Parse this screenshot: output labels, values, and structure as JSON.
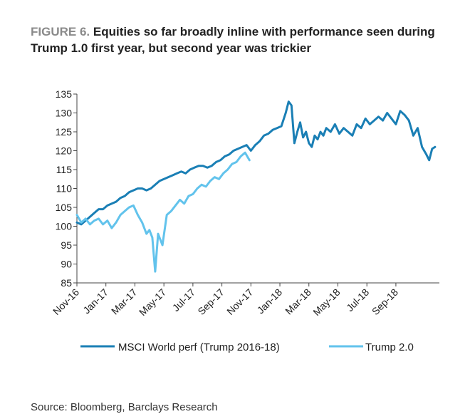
{
  "figure": {
    "label": "FIGURE 6.",
    "title": "Equities so far broadly inline with performance seen during Trump 1.0 first year, but second year was trickier",
    "source": "Source: Bloomberg, Barclays Research"
  },
  "colors": {
    "msci": "#1a7fb5",
    "trump2": "#62c3ec",
    "axis": "#444444"
  },
  "chart_data": {
    "type": "line",
    "title": "Equities so far broadly inline with performance seen during Trump 1.0 first year, but second year was trickier",
    "xlabel": "",
    "ylabel": "",
    "ylim": [
      85,
      135
    ],
    "yticks": [
      85,
      90,
      95,
      100,
      105,
      110,
      115,
      120,
      125,
      130,
      135
    ],
    "xlim": [
      0,
      25
    ],
    "xtick_positions": [
      0,
      2,
      4,
      6,
      8,
      10,
      12,
      14,
      16,
      18,
      20,
      22
    ],
    "xtick_labels": [
      "Nov-16",
      "Jan-17",
      "Mar-17",
      "May-17",
      "Jul-17",
      "Sep-17",
      "Nov-17",
      "Jan-18",
      "Mar-18",
      "May-18",
      "Jul-18",
      "Sep-18"
    ],
    "grid": false,
    "legend_position": "bottom",
    "series": [
      {
        "name": "MSCI World perf (Trump 2016-18)",
        "color": "#1a7fb5",
        "x": [
          0,
          0.3,
          0.6,
          0.9,
          1.2,
          1.5,
          1.8,
          2.1,
          2.4,
          2.7,
          3.0,
          3.3,
          3.6,
          3.9,
          4.2,
          4.5,
          4.8,
          5.1,
          5.4,
          5.7,
          6.0,
          6.3,
          6.6,
          6.9,
          7.2,
          7.5,
          7.8,
          8.1,
          8.4,
          8.7,
          9.0,
          9.3,
          9.6,
          9.9,
          10.2,
          10.5,
          10.8,
          11.1,
          11.4,
          11.7,
          12.0,
          12.3,
          12.6,
          12.9,
          13.2,
          13.5,
          13.8,
          14.1,
          14.4,
          14.6,
          14.8,
          15.0,
          15.2,
          15.4,
          15.6,
          15.8,
          16.0,
          16.2,
          16.4,
          16.6,
          16.8,
          17.0,
          17.2,
          17.5,
          17.8,
          18.1,
          18.4,
          18.7,
          19.0,
          19.3,
          19.6,
          19.9,
          20.2,
          20.5,
          20.8,
          21.1,
          21.4,
          21.7,
          22.0,
          22.3,
          22.6,
          22.9,
          23.2,
          23.5,
          23.8,
          24.1,
          24.3,
          24.5,
          24.7
        ],
        "values": [
          101,
          100.5,
          101.5,
          102.5,
          103.5,
          104.5,
          104.5,
          105.5,
          106,
          106.5,
          107.5,
          108,
          109,
          109.5,
          110,
          110,
          109.5,
          110,
          111,
          112,
          112.5,
          113,
          113.5,
          114,
          114.5,
          114,
          115,
          115.5,
          116,
          116,
          115.5,
          116,
          117,
          117.5,
          118.5,
          119,
          120,
          120.5,
          121,
          121.5,
          120,
          121.5,
          122.5,
          124,
          124.5,
          125.5,
          126,
          126.5,
          130,
          133,
          132,
          122,
          125,
          127.5,
          123.5,
          125,
          122,
          121,
          124,
          123,
          125,
          124,
          126,
          125,
          127,
          124.5,
          126,
          125,
          124,
          127,
          126,
          128.5,
          127,
          128,
          129,
          128,
          130,
          128.5,
          127,
          130.5,
          129.5,
          128,
          124,
          126,
          121,
          119,
          117.5,
          120.5,
          121
        ]
      },
      {
        "name": "Trump 2.0",
        "color": "#62c3ec",
        "x": [
          0,
          0.3,
          0.6,
          0.9,
          1.2,
          1.5,
          1.8,
          2.1,
          2.4,
          2.7,
          3.0,
          3.3,
          3.6,
          3.9,
          4.2,
          4.5,
          4.8,
          5.0,
          5.2,
          5.4,
          5.6,
          5.9,
          6.2,
          6.5,
          6.8,
          7.1,
          7.4,
          7.7,
          8.0,
          8.3,
          8.6,
          8.9,
          9.2,
          9.5,
          9.8,
          10.1,
          10.4,
          10.7,
          11.0,
          11.3,
          11.6,
          11.9
        ],
        "values": [
          103,
          101,
          102,
          100.5,
          101.5,
          102,
          100.5,
          101.5,
          99.5,
          101,
          103,
          104,
          105,
          105.5,
          103,
          101,
          98,
          99,
          97,
          88,
          98,
          95,
          103,
          104,
          105.5,
          107,
          106,
          108,
          108.5,
          110,
          111,
          110.5,
          112,
          113,
          112.5,
          114,
          115,
          116.5,
          117,
          118.5,
          119.5,
          117.5
        ]
      }
    ]
  }
}
